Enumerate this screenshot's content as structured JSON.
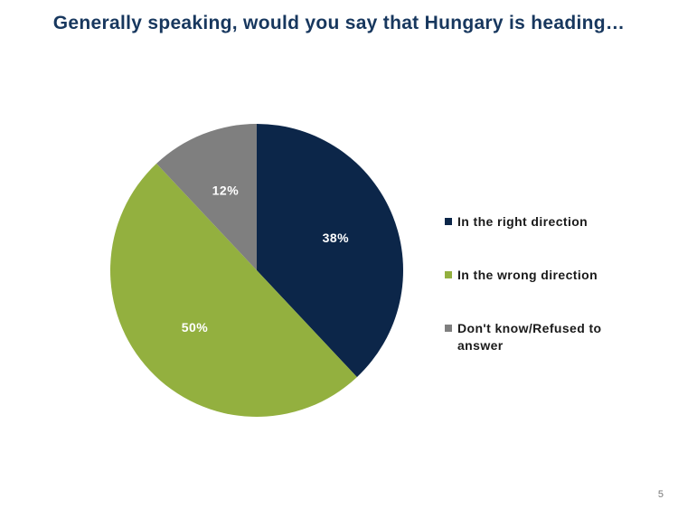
{
  "chart_data": {
    "type": "pie",
    "title": "Generally speaking, would you say that Hungary is heading…",
    "categories": [
      "In the right direction",
      "In the wrong direction",
      "Don't know/Refused to answer"
    ],
    "values": [
      38,
      50,
      12
    ],
    "value_labels": [
      "38%",
      "50%",
      "12%"
    ],
    "colors": [
      "#0c2649",
      "#93b03f",
      "#7f7f7f"
    ],
    "legend": "right"
  },
  "page_number": 5
}
